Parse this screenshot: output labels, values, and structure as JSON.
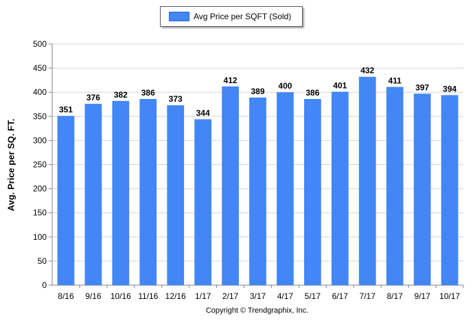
{
  "chart_data": {
    "type": "bar",
    "categories": [
      "8/16",
      "9/16",
      "10/16",
      "11/16",
      "12/16",
      "1/17",
      "2/17",
      "3/17",
      "4/17",
      "5/17",
      "6/17",
      "7/17",
      "8/17",
      "9/17",
      "10/17"
    ],
    "series": [
      {
        "name": "Avg Price per SQFT (Sold)",
        "values": [
          351,
          376,
          382,
          386,
          373,
          344,
          412,
          389,
          400,
          386,
          401,
          432,
          411,
          397,
          394
        ]
      }
    ],
    "ylabel": "Avg. Price per SQ. FT.",
    "ylim": [
      0,
      500
    ],
    "yticks": [
      "0",
      "50",
      "100",
      "150",
      "200",
      "250",
      "300",
      "350",
      "400",
      "450",
      "500"
    ],
    "grid": true,
    "legend_position": "top-center",
    "bar_color": "#4287f5",
    "grid_color": "#d4d4d4"
  },
  "legend": {
    "label": "Avg Price per SQFT (Sold)"
  },
  "footer": {
    "copyright": "Copyright © Trendgraphix, Inc."
  }
}
